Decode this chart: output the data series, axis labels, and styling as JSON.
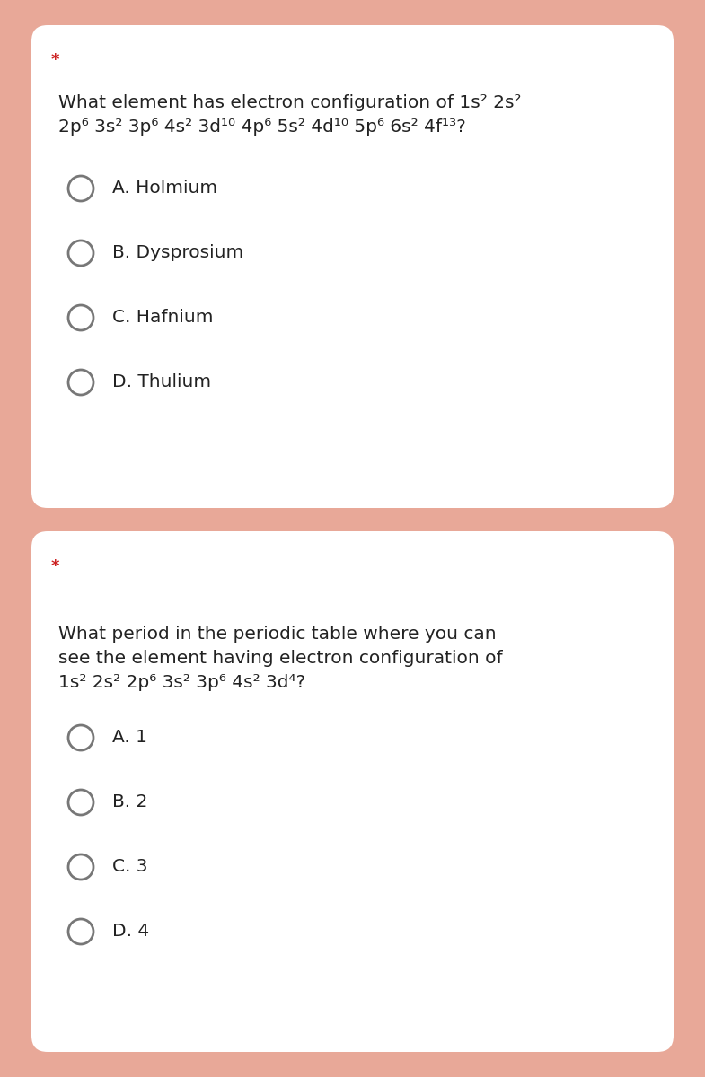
{
  "background_color": "#e8a898",
  "card_color": "#ffffff",
  "star_color": "#cc2222",
  "text_color": "#222222",
  "question1": {
    "star": "*",
    "q_lines": [
      "What element has electron configuration of 1s² 2s²",
      "2p⁶ 3s² 3p⁶ 4s² 3d¹⁰ 4p⁶ 5s² 4d¹⁰ 5p⁶ 6s² 4f¹³?"
    ],
    "options": [
      "A. Holmium",
      "B. Dysprosium",
      "C. Hafnium",
      "D. Thulium"
    ]
  },
  "question2": {
    "star": "*",
    "q_lines": [
      "What period in the periodic table where you can",
      "see the element having electron configuration of",
      "1s² 2s² 2p⁶ 3s² 3p⁶ 4s² 3d⁴?"
    ],
    "options": [
      "A. 1",
      "B. 2",
      "C. 3",
      "D. 4"
    ]
  }
}
